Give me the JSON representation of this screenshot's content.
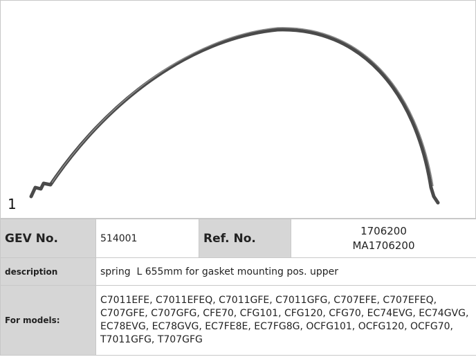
{
  "item_number": "1",
  "table": {
    "rows": [
      [
        "GEV No.",
        "514001",
        "Ref. No.",
        [
          "1706200",
          "MA1706200"
        ]
      ],
      [
        "description",
        "spring  L 655mm for gasket mounting pos. upper"
      ],
      [
        "For models:",
        "C7011EFE, C7011EFEQ, C7011GFE, C7011GFG, C707EFE, C707EFEQ, C707GFE, C707GFG, CFE70, CFG101, CFG120, CFG70, EC74EVG, EC74GVG, EC78EVG, EC78GVG, EC7FE8E, EC7FG8G, OCFG101, OCFG120, OCFG70, T7011GFG, T707GFG"
      ]
    ]
  }
}
